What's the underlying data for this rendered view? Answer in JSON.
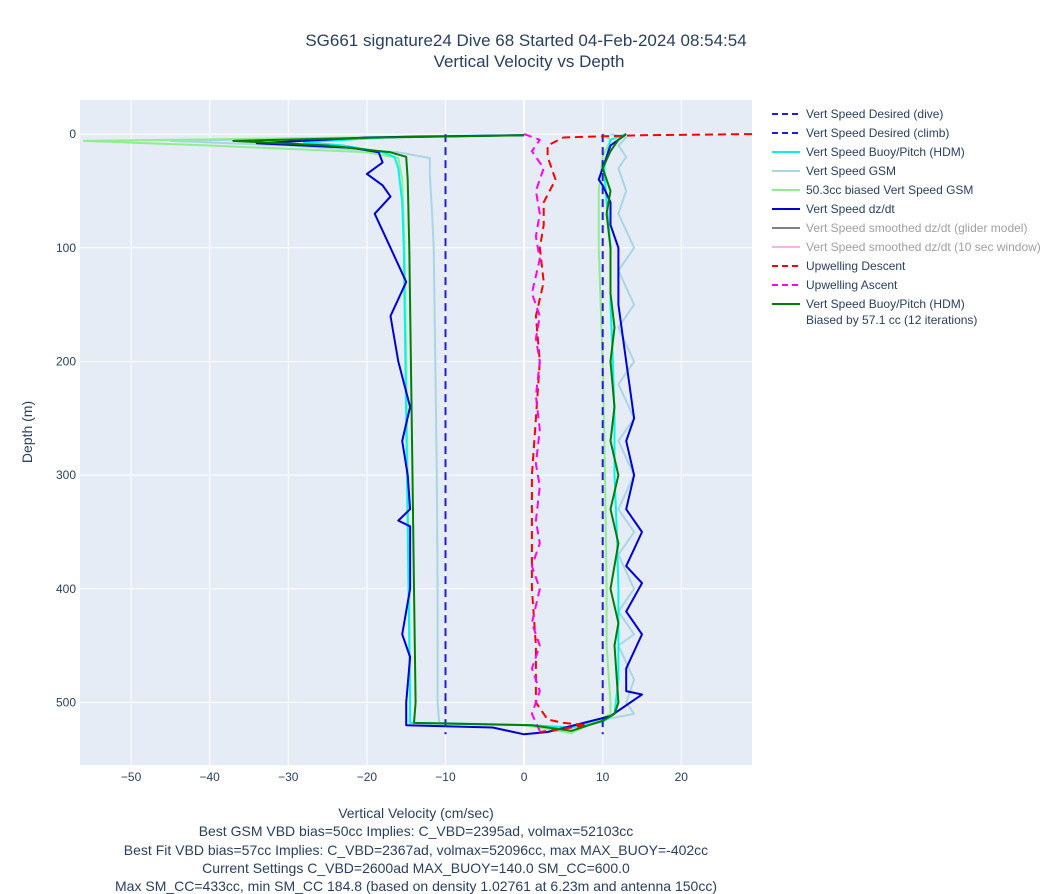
{
  "chart_data": {
    "type": "line",
    "title": [
      "SG661 signature24 Dive 68 Started 04-Feb-2024 08:54:54",
      "Vertical Velocity vs Depth"
    ],
    "xlabel": "Vertical Velocity (cm/sec)",
    "ylabel": "Depth (m)",
    "xlim": [
      -56.5,
      29
    ],
    "ylim": [
      555,
      -30
    ],
    "y_reversed": true,
    "grid": true,
    "legend_position": "right",
    "x_ticks": [
      -50,
      -40,
      -30,
      -20,
      -10,
      0,
      10,
      20
    ],
    "y_ticks": [
      0,
      100,
      200,
      300,
      400,
      500
    ],
    "annotation_lines": [
      "Best GSM VBD bias=50cc Implies: C_VBD=2395ad, volmax=52103cc",
      "Best Fit VBD bias=57cc Implies: C_VBD=2367ad, volmax=52096cc, max MAX_BUOY=-402cc",
      "Current Settings C_VBD=2600ad MAX_BUOY=140.0 SM_CC=600.0",
      "Max SM_CC=433cc, min SM_CC 184.8 (based on density 1.02761 at 6.23m and antenna 150cc)"
    ],
    "series": [
      {
        "name": "Vert Speed Desired (dive)",
        "color": "#1f1fd6",
        "dash": true,
        "dim": false,
        "visible": true,
        "points": [
          [
            -10,
            0
          ],
          [
            -10,
            528
          ]
        ]
      },
      {
        "name": "Vert Speed Desired (climb)",
        "color": "#1f1fd6",
        "dash": true,
        "dim": false,
        "visible": true,
        "points": [
          [
            10,
            0
          ],
          [
            10,
            528
          ]
        ]
      },
      {
        "name": "Vert Speed Buoy/Pitch (HDM)",
        "color": "#00f5ee",
        "dash": false,
        "dim": false,
        "visible": true,
        "points": [
          [
            0,
            1
          ],
          [
            -15,
            2
          ],
          [
            -28,
            7
          ],
          [
            -23,
            10
          ],
          [
            -18,
            16
          ],
          [
            -16.5,
            20
          ],
          [
            -16,
            30
          ],
          [
            -15.5,
            60
          ],
          [
            -15.3,
            100
          ],
          [
            -15.1,
            200
          ],
          [
            -14.9,
            300
          ],
          [
            -14.7,
            400
          ],
          [
            -14.5,
            500
          ],
          [
            -14.5,
            518
          ],
          [
            1,
            520
          ],
          [
            6,
            522
          ],
          [
            10,
            517
          ],
          [
            11.5,
            510
          ],
          [
            12,
            480
          ],
          [
            12,
            440
          ],
          [
            12,
            400
          ],
          [
            11.8,
            350
          ],
          [
            11.5,
            300
          ],
          [
            11.5,
            250
          ],
          [
            11.3,
            200
          ],
          [
            11,
            150
          ],
          [
            11,
            100
          ],
          [
            10.5,
            60
          ],
          [
            10.2,
            30
          ],
          [
            11,
            5
          ],
          [
            13,
            0
          ]
        ]
      },
      {
        "name": "Vert Speed GSM",
        "color": "#a9d6e5",
        "dash": false,
        "dim": false,
        "visible": true,
        "points": [
          [
            0,
            1
          ],
          [
            -18,
            3
          ],
          [
            -45,
            6
          ],
          [
            -30,
            10
          ],
          [
            -16,
            16
          ],
          [
            -12,
            21
          ],
          [
            -12,
            35
          ],
          [
            -11.7,
            70
          ],
          [
            -11.5,
            100
          ],
          [
            -11.3,
            200
          ],
          [
            -11.1,
            300
          ],
          [
            -11,
            400
          ],
          [
            -11,
            500
          ],
          [
            -10.8,
            518
          ],
          [
            1,
            520
          ],
          [
            5,
            524
          ],
          [
            11,
            514
          ],
          [
            14,
            510
          ],
          [
            13,
            500
          ],
          [
            14,
            480
          ],
          [
            12,
            450
          ],
          [
            14,
            440
          ],
          [
            12,
            420
          ],
          [
            14,
            400
          ],
          [
            12,
            370
          ],
          [
            14,
            350
          ],
          [
            12,
            330
          ],
          [
            14,
            300
          ],
          [
            12,
            270
          ],
          [
            14,
            250
          ],
          [
            12,
            220
          ],
          [
            14,
            200
          ],
          [
            12,
            170
          ],
          [
            14,
            150
          ],
          [
            12,
            120
          ],
          [
            14,
            100
          ],
          [
            12,
            70
          ],
          [
            13,
            50
          ],
          [
            12,
            30
          ],
          [
            13,
            20
          ],
          [
            12,
            10
          ],
          [
            13,
            3
          ],
          [
            11,
            0
          ]
        ]
      },
      {
        "name": "50.3cc biased Vert Speed GSM",
        "color": "#90ee90",
        "dash": false,
        "dim": false,
        "visible": true,
        "points": [
          [
            0,
            1
          ],
          [
            -22,
            3
          ],
          [
            -56,
            6
          ],
          [
            -40,
            10
          ],
          [
            -20,
            16
          ],
          [
            -16,
            21
          ],
          [
            -15.5,
            40
          ],
          [
            -15.2,
            100
          ],
          [
            -15,
            200
          ],
          [
            -14.8,
            300
          ],
          [
            -14.6,
            400
          ],
          [
            -14.5,
            500
          ],
          [
            -14.6,
            518
          ],
          [
            0,
            520
          ],
          [
            6,
            527
          ],
          [
            9,
            517
          ],
          [
            11,
            510
          ],
          [
            11,
            500
          ],
          [
            10.5,
            450
          ],
          [
            10.5,
            400
          ],
          [
            10.3,
            300
          ],
          [
            10,
            200
          ],
          [
            9.5,
            100
          ],
          [
            9.5,
            50
          ],
          [
            10,
            20
          ],
          [
            11,
            5
          ],
          [
            10,
            0
          ]
        ]
      },
      {
        "name": "Vert Speed dz/dt",
        "color": "#0000d8",
        "dash": false,
        "dim": false,
        "visible": true,
        "points": [
          [
            0,
            1
          ],
          [
            -20,
            3
          ],
          [
            -34,
            8
          ],
          [
            -22,
            12
          ],
          [
            -18.5,
            16
          ],
          [
            -18,
            25
          ],
          [
            -20,
            35
          ],
          [
            -18,
            45
          ],
          [
            -17,
            55
          ],
          [
            -19,
            70
          ],
          [
            -17,
            100
          ],
          [
            -15,
            130
          ],
          [
            -17,
            160
          ],
          [
            -16,
            200
          ],
          [
            -14.5,
            240
          ],
          [
            -15.5,
            270
          ],
          [
            -14.8,
            300
          ],
          [
            -14.5,
            330
          ],
          [
            -16,
            340
          ],
          [
            -14.5,
            345
          ],
          [
            -14.5,
            400
          ],
          [
            -15.5,
            440
          ],
          [
            -14.5,
            460
          ],
          [
            -15,
            500
          ],
          [
            -15,
            520
          ],
          [
            -4,
            522
          ],
          [
            0,
            528
          ],
          [
            3,
            526
          ],
          [
            11,
            512
          ],
          [
            15,
            493
          ],
          [
            13,
            490
          ],
          [
            13,
            470
          ],
          [
            15,
            440
          ],
          [
            13,
            420
          ],
          [
            15,
            395
          ],
          [
            13,
            380
          ],
          [
            15,
            350
          ],
          [
            13,
            330
          ],
          [
            14,
            300
          ],
          [
            13,
            270
          ],
          [
            14,
            250
          ],
          [
            13,
            200
          ],
          [
            12,
            150
          ],
          [
            12,
            100
          ],
          [
            11,
            80
          ],
          [
            11,
            60
          ],
          [
            10,
            45
          ],
          [
            9.5,
            40
          ],
          [
            10,
            30
          ],
          [
            10.5,
            20
          ],
          [
            11,
            10
          ],
          [
            12,
            5
          ],
          [
            13,
            0
          ]
        ]
      },
      {
        "name": "Vert Speed smoothed dz/dt (glider model)",
        "color": "#808080",
        "dash": false,
        "dim": true,
        "visible": false,
        "points": []
      },
      {
        "name": "Vert Speed smoothed dz/dt (10 sec window)",
        "color": "#f4b6e2",
        "dash": false,
        "dim": true,
        "visible": false,
        "points": []
      },
      {
        "name": "Upwelling Descent",
        "color": "#ff0000",
        "dash": true,
        "dim": false,
        "visible": true,
        "points": [
          [
            29,
            0
          ],
          [
            15,
            1
          ],
          [
            5,
            3
          ],
          [
            3,
            10
          ],
          [
            3,
            20
          ],
          [
            4,
            40
          ],
          [
            2.5,
            60
          ],
          [
            2.5,
            80
          ],
          [
            2,
            100
          ],
          [
            2.5,
            130
          ],
          [
            1.5,
            160
          ],
          [
            2,
            200
          ],
          [
            1.5,
            250
          ],
          [
            1,
            300
          ],
          [
            1,
            350
          ],
          [
            1,
            400
          ],
          [
            1.5,
            450
          ],
          [
            1.5,
            480
          ],
          [
            1.5,
            500
          ],
          [
            3,
            515
          ],
          [
            5,
            518
          ],
          [
            8,
            520
          ],
          [
            2,
            526
          ]
        ]
      },
      {
        "name": "Upwelling Ascent",
        "color": "#ff00ff",
        "dash": true,
        "dim": false,
        "visible": true,
        "points": [
          [
            0,
            0
          ],
          [
            2,
            5
          ],
          [
            1,
            15
          ],
          [
            2.5,
            30
          ],
          [
            1.5,
            50
          ],
          [
            2,
            70
          ],
          [
            1.5,
            90
          ],
          [
            2,
            110
          ],
          [
            1,
            140
          ],
          [
            2,
            160
          ],
          [
            1.5,
            180
          ],
          [
            2,
            200
          ],
          [
            1.5,
            230
          ],
          [
            2,
            260
          ],
          [
            1.5,
            290
          ],
          [
            2,
            310
          ],
          [
            1.5,
            340
          ],
          [
            2,
            360
          ],
          [
            1,
            380
          ],
          [
            2,
            400
          ],
          [
            1,
            430
          ],
          [
            2,
            450
          ],
          [
            1,
            470
          ],
          [
            2,
            490
          ],
          [
            1,
            510
          ],
          [
            2,
            525
          ]
        ]
      },
      {
        "name": "Vert Speed Buoy/Pitch (HDM)\nBiased by 57.1 cc (12 iterations)",
        "color": "#008000",
        "dash": false,
        "dim": false,
        "visible": true,
        "points": [
          [
            0,
            1
          ],
          [
            -18,
            3
          ],
          [
            -37,
            6
          ],
          [
            -25,
            10
          ],
          [
            -17,
            16
          ],
          [
            -15,
            20
          ],
          [
            -14.8,
            40
          ],
          [
            -14.6,
            100
          ],
          [
            -14.4,
            200
          ],
          [
            -14.2,
            300
          ],
          [
            -14,
            400
          ],
          [
            -13.8,
            500
          ],
          [
            -14,
            518
          ],
          [
            1,
            520
          ],
          [
            6,
            525
          ],
          [
            10,
            516
          ],
          [
            11.5,
            510
          ],
          [
            12,
            500
          ],
          [
            11.5,
            450
          ],
          [
            12,
            430
          ],
          [
            11,
            400
          ],
          [
            12,
            360
          ],
          [
            11,
            330
          ],
          [
            12,
            300
          ],
          [
            11,
            270
          ],
          [
            11.5,
            240
          ],
          [
            11,
            200
          ],
          [
            11.5,
            170
          ],
          [
            11,
            140
          ],
          [
            11,
            100
          ],
          [
            10.5,
            70
          ],
          [
            11,
            50
          ],
          [
            10,
            30
          ],
          [
            11,
            15
          ],
          [
            12,
            5
          ],
          [
            13,
            0
          ]
        ]
      }
    ]
  }
}
